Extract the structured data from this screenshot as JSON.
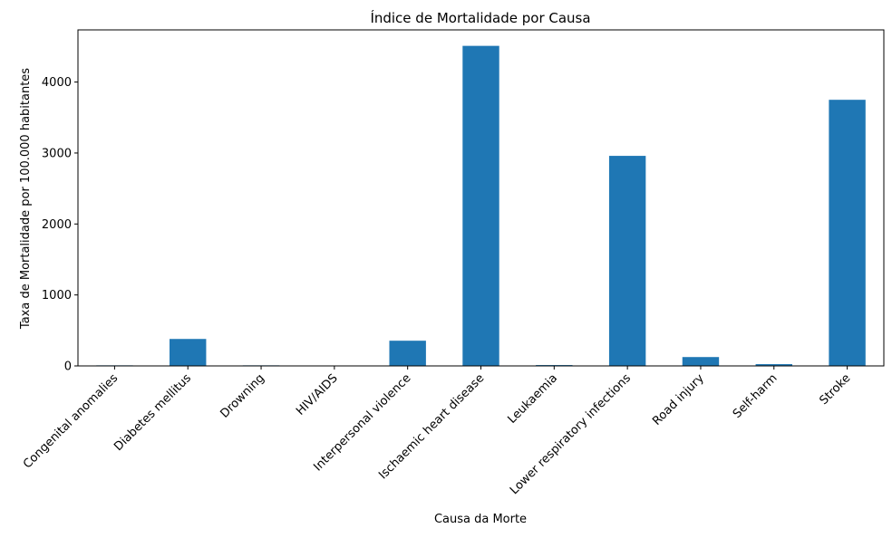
{
  "chart_data": {
    "type": "bar",
    "title": "Índice de Mortalidade por Causa",
    "xlabel": "Causa da Morte",
    "ylabel": "Taxa de Mortalidade por 100.000 habitantes",
    "categories": [
      "Congenital anomalies",
      "Diabetes mellitus",
      "Drowning",
      "HIV/AIDS",
      "Interpersonal violence",
      "Ischaemic heart disease",
      "Leukaemia",
      "Lower respiratory infections",
      "Road injury",
      "Self-harm",
      "Stroke"
    ],
    "values": [
      8,
      380,
      8,
      5,
      355,
      4510,
      12,
      2960,
      125,
      25,
      3750
    ],
    "ylim": [
      0,
      4735
    ],
    "yticks": [
      0,
      1000,
      2000,
      3000,
      4000
    ],
    "ytick_labels": [
      "0",
      "1000",
      "2000",
      "3000",
      "4000"
    ],
    "grid": false,
    "legend": "none",
    "bar_color": "#1f77b4"
  }
}
